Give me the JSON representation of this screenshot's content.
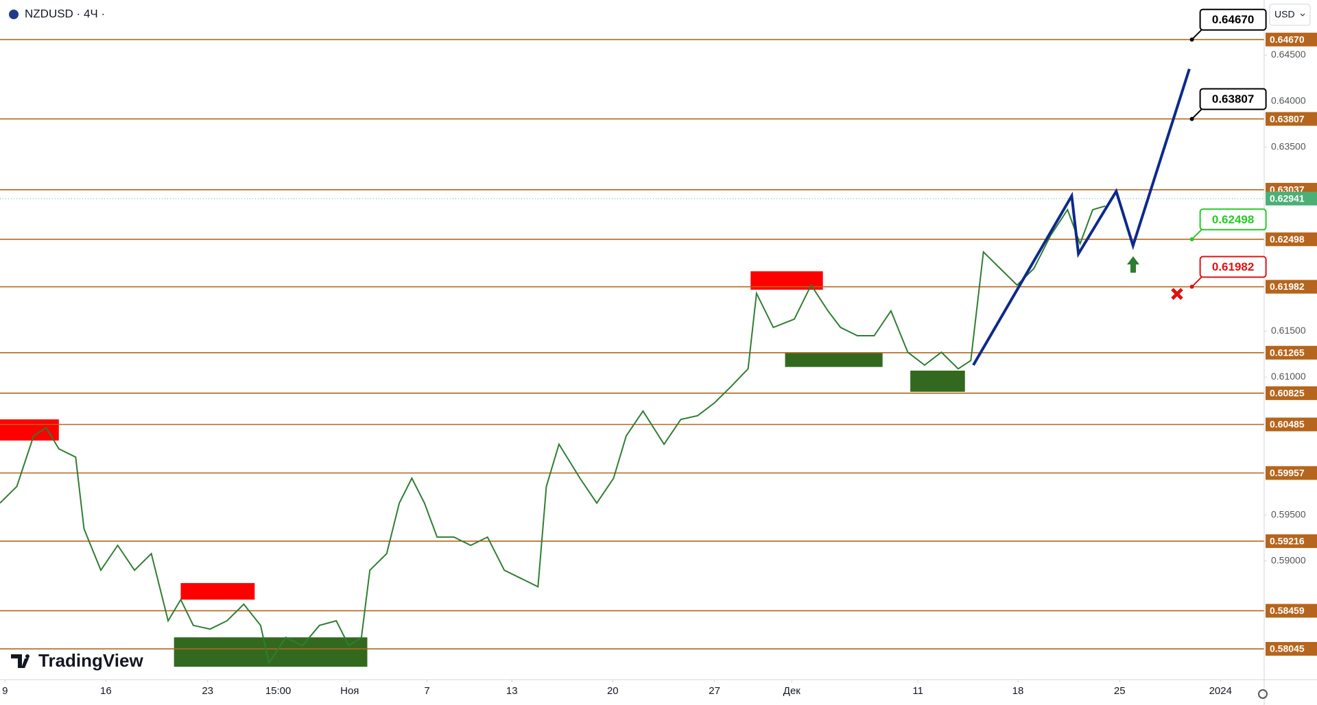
{
  "header": {
    "symbol": "NZDUSD · 4Ч ·",
    "currency": "USD",
    "brand": "TradingView"
  },
  "chart_data": {
    "type": "line",
    "ylim": [
      0.5771,
      0.651
    ],
    "xlim": [
      0,
      376
    ],
    "yticks": [
      {
        "value": 0.645,
        "label": "0.64500"
      },
      {
        "value": 0.64,
        "label": "0.64000"
      },
      {
        "value": 0.635,
        "label": "0.63500"
      },
      {
        "value": 0.615,
        "label": "0.61500"
      },
      {
        "value": 0.61,
        "label": "0.61000"
      },
      {
        "value": 0.595,
        "label": "0.59500"
      },
      {
        "value": 0.59,
        "label": "0.59000"
      }
    ],
    "xticks": [
      {
        "value": 1.5,
        "label": "9"
      },
      {
        "value": 31.5,
        "label": "16"
      },
      {
        "value": 61.75,
        "label": "23"
      },
      {
        "value": 82.75,
        "label": "15:00"
      },
      {
        "value": 104,
        "label": "Ноя"
      },
      {
        "value": 127,
        "label": "7"
      },
      {
        "value": 152.25,
        "label": "13"
      },
      {
        "value": 182.25,
        "label": "20"
      },
      {
        "value": 212.5,
        "label": "27"
      },
      {
        "value": 235.5,
        "label": "Дек"
      },
      {
        "value": 273,
        "label": "11"
      },
      {
        "value": 302.75,
        "label": "18"
      },
      {
        "value": 333,
        "label": "25"
      },
      {
        "value": 363,
        "label": "2024"
      }
    ],
    "levels": [
      {
        "value": 0.6467,
        "label": "0.64670"
      },
      {
        "value": 0.63807,
        "label": "0.63807"
      },
      {
        "value": 0.63037,
        "label": "0.63037"
      },
      {
        "value": 0.62498,
        "label": "0.62498"
      },
      {
        "value": 0.61982,
        "label": "0.61982"
      },
      {
        "value": 0.61265,
        "label": "0.61265"
      },
      {
        "value": 0.60825,
        "label": "0.60825"
      },
      {
        "value": 0.60485,
        "label": "0.60485"
      },
      {
        "value": 0.59957,
        "label": "0.59957"
      },
      {
        "value": 0.59216,
        "label": "0.59216"
      },
      {
        "value": 0.58459,
        "label": "0.58459"
      },
      {
        "value": 0.58045,
        "label": "0.58045"
      }
    ],
    "level_color": "#b5651d",
    "last_price": {
      "value": 0.62941,
      "label": "0.62941",
      "color": "#4caf76"
    },
    "series": [
      {
        "color": "#2e7d32",
        "x": [
          0,
          5,
          10,
          13.75,
          17.5,
          22.5,
          25,
          30,
          35,
          40,
          45,
          50,
          53.75,
          57.5,
          62.5,
          67.5,
          72.5,
          77.5,
          80,
          85,
          90,
          95,
          100,
          103.75,
          107.5,
          110,
          115,
          118.75,
          122.5,
          126.25,
          130,
          135,
          140,
          145,
          150,
          155,
          160,
          162.5,
          166.25,
          172.5,
          177.5,
          182.5,
          186.25,
          191.25,
          197.5,
          202.5,
          207.5,
          212.5,
          217.5,
          222.5,
          225,
          230,
          236.25,
          241.25,
          246.25,
          250,
          255,
          260,
          265,
          270,
          275,
          280,
          285,
          288.75,
          292.5,
          297.5,
          302.5,
          307.5,
          312.5,
          317.5,
          321.25,
          325,
          328.75
        ],
        "values": [
          0.5963,
          0.5981,
          0.6036,
          0.6045,
          0.6022,
          0.6013,
          0.5935,
          0.589,
          0.5917,
          0.589,
          0.5908,
          0.5835,
          0.5858,
          0.583,
          0.5826,
          0.5835,
          0.5853,
          0.583,
          0.5789,
          0.5817,
          0.5808,
          0.583,
          0.5835,
          0.5808,
          0.5817,
          0.589,
          0.5908,
          0.5963,
          0.599,
          0.5963,
          0.5926,
          0.5926,
          0.5917,
          0.5926,
          0.589,
          0.5881,
          0.5872,
          0.5981,
          0.6027,
          0.599,
          0.5963,
          0.599,
          0.6036,
          0.6063,
          0.6027,
          0.6054,
          0.6058,
          0.6072,
          0.609,
          0.6109,
          0.6191,
          0.6154,
          0.6163,
          0.62,
          0.6172,
          0.6154,
          0.6145,
          0.6145,
          0.6172,
          0.6127,
          0.6113,
          0.6127,
          0.6109,
          0.6118,
          0.6236,
          0.6218,
          0.62,
          0.6218,
          0.6254,
          0.6282,
          0.6245,
          0.6282,
          0.6286
        ]
      }
    ],
    "projection": {
      "color": "#0d2a8a",
      "x": [
        289.5,
        318.75,
        320.75,
        332,
        337,
        353.75
      ],
      "values": [
        0.6113,
        0.6297,
        0.6234,
        0.6302,
        0.6243,
        0.6435
      ]
    },
    "zones": [
      {
        "x": [
          0,
          17.5
        ],
        "y": [
          0.6031,
          0.6054
        ],
        "color": "#ff0000"
      },
      {
        "x": [
          53.75,
          75.75
        ],
        "y": [
          0.5858,
          0.5876
        ],
        "color": "#ff0000"
      },
      {
        "x": [
          51.75,
          109.25
        ],
        "y": [
          0.5785,
          0.5817
        ],
        "color": "#33691e"
      },
      {
        "x": [
          223.25,
          244.75
        ],
        "y": [
          0.6195,
          0.6215
        ],
        "color": "#ff0000"
      },
      {
        "x": [
          233.5,
          262.5
        ],
        "y": [
          0.6111,
          0.6127
        ],
        "color": "#33691e"
      },
      {
        "x": [
          270.75,
          287
        ],
        "y": [
          0.6084,
          0.6107
        ],
        "color": "#33691e"
      }
    ],
    "callouts": [
      {
        "x": 354.5,
        "value": 0.6467,
        "label": "0.64670",
        "color": "#000000"
      },
      {
        "x": 354.5,
        "value": 0.63807,
        "label": "0.63807",
        "color": "#000000"
      },
      {
        "x": 354.5,
        "value": 0.62498,
        "label": "0.62498",
        "color": "#22cc22"
      },
      {
        "x": 354.5,
        "value": 0.61982,
        "label": "0.61982",
        "color": "#e01010"
      }
    ]
  }
}
